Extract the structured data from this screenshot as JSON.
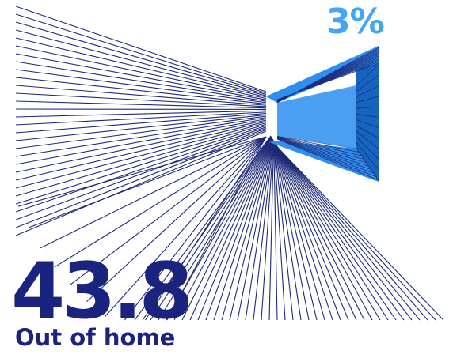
{
  "figure": {
    "share_label": "3%",
    "main_value": "43.8",
    "caption": "Out of home"
  },
  "colors": {
    "navy": "#1a237e",
    "line_navy": "#1e2a78",
    "bright_blue": "#2f8ff0",
    "light_blue": "#42a5f5",
    "mid_blue": "#1565c0"
  }
}
